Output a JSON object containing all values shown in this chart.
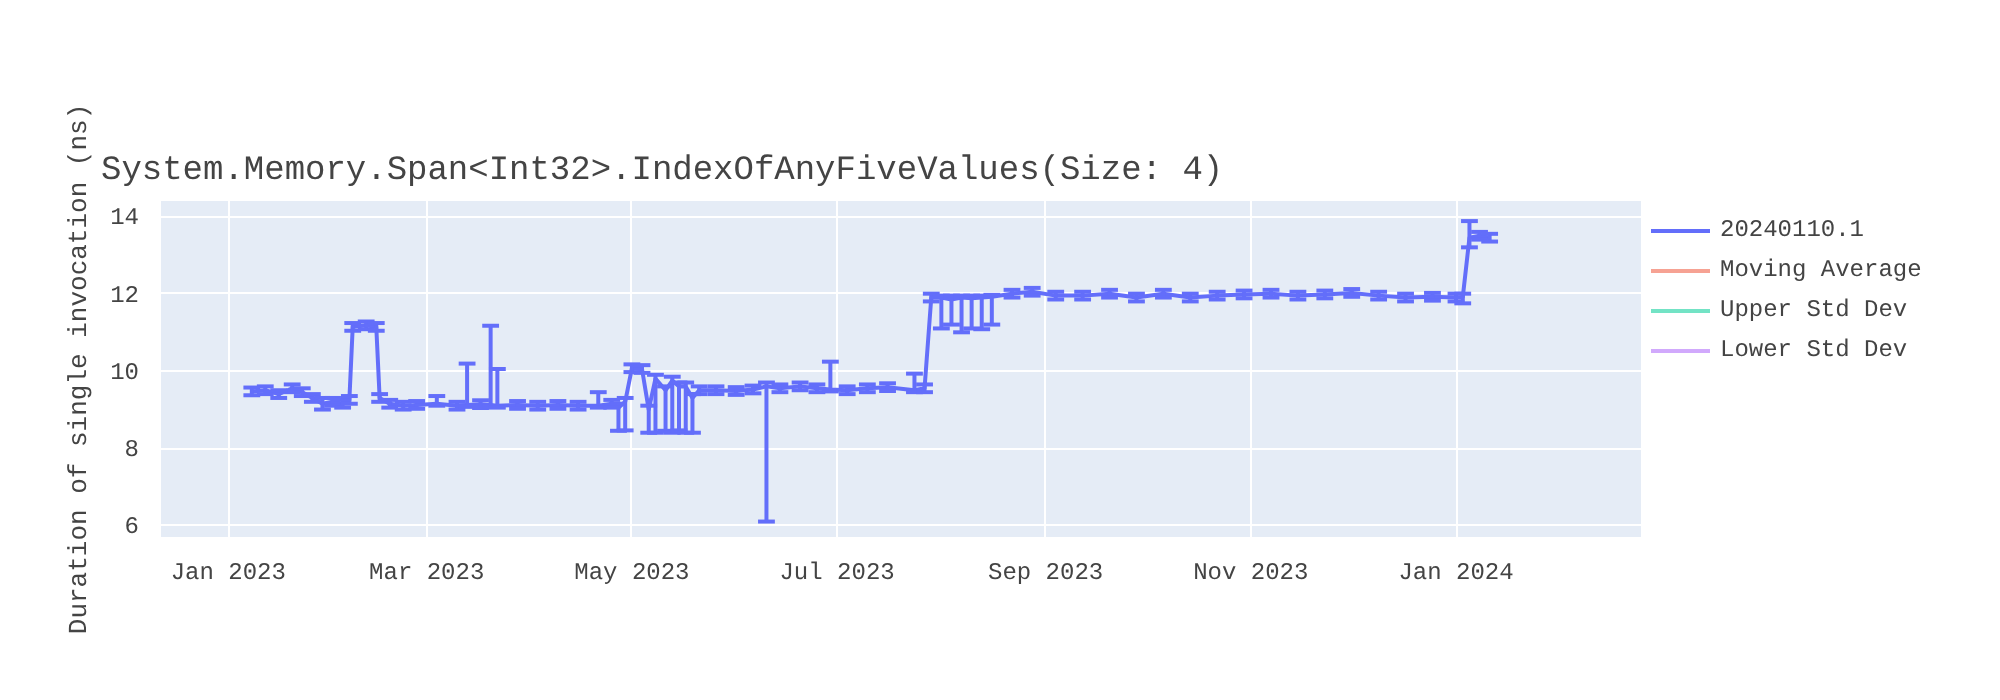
{
  "chart_data": {
    "type": "line",
    "title": "System.Memory.Span<Int32>.IndexOfAnyFiveValues(Size: 4)",
    "ylabel": "Duration of single invocation (ns)",
    "xlim": [
      "2022-12-12",
      "2024-02-25"
    ],
    "xticks": [
      {
        "value": "2023-01-01",
        "label": "Jan 2023"
      },
      {
        "value": "2023-03-01",
        "label": "Mar 2023"
      },
      {
        "value": "2023-05-01",
        "label": "May 2023"
      },
      {
        "value": "2023-07-01",
        "label": "Jul 2023"
      },
      {
        "value": "2023-09-01",
        "label": "Sep 2023"
      },
      {
        "value": "2023-11-01",
        "label": "Nov 2023"
      },
      {
        "value": "2024-01-01",
        "label": "Jan 2024"
      }
    ],
    "ylim": [
      5.7,
      14.4
    ],
    "yticks": [
      6,
      8,
      10,
      12,
      14
    ],
    "grid": true,
    "legend": "top right",
    "marker": "none",
    "line_style": "solid",
    "series": [
      {
        "name": "20240110.1",
        "color": "#636efa",
        "x": [
          "2023-01-08",
          "2023-01-12",
          "2023-01-16",
          "2023-01-20",
          "2023-01-23",
          "2023-01-26",
          "2023-01-29",
          "2023-02-01",
          "2023-02-04",
          "2023-02-06",
          "2023-02-07",
          "2023-02-11",
          "2023-02-14",
          "2023-02-15",
          "2023-02-18",
          "2023-02-22",
          "2023-02-26",
          "2023-03-04",
          "2023-03-10",
          "2023-03-13",
          "2023-03-17",
          "2023-03-20",
          "2023-03-22",
          "2023-03-28",
          "2023-04-03",
          "2023-04-09",
          "2023-04-15",
          "2023-04-21",
          "2023-04-25",
          "2023-04-27",
          "2023-04-29",
          "2023-05-01",
          "2023-05-04",
          "2023-05-06",
          "2023-05-08",
          "2023-05-11",
          "2023-05-13",
          "2023-05-15",
          "2023-05-17",
          "2023-05-19",
          "2023-05-21",
          "2023-05-26",
          "2023-06-01",
          "2023-06-06",
          "2023-06-10",
          "2023-06-14",
          "2023-06-20",
          "2023-06-25",
          "2023-06-29",
          "2023-07-04",
          "2023-07-10",
          "2023-07-16",
          "2023-07-24",
          "2023-07-27",
          "2023-07-29",
          "2023-08-01",
          "2023-08-04",
          "2023-08-07",
          "2023-08-10",
          "2023-08-13",
          "2023-08-16",
          "2023-08-22",
          "2023-08-28",
          "2023-09-04",
          "2023-09-12",
          "2023-09-20",
          "2023-09-28",
          "2023-10-06",
          "2023-10-14",
          "2023-10-22",
          "2023-10-30",
          "2023-11-07",
          "2023-11-15",
          "2023-11-23",
          "2023-12-01",
          "2023-12-09",
          "2023-12-17",
          "2023-12-25",
          "2024-01-01",
          "2024-01-03",
          "2024-01-05",
          "2024-01-08",
          "2024-01-11"
        ],
        "values": [
          9.47,
          9.5,
          9.4,
          9.55,
          9.45,
          9.3,
          9.15,
          9.2,
          9.15,
          9.25,
          11.14,
          11.18,
          11.14,
          9.3,
          9.15,
          9.1,
          9.12,
          9.15,
          9.1,
          9.12,
          9.14,
          9.12,
          9.1,
          9.12,
          9.1,
          9.12,
          9.1,
          9.1,
          9.15,
          9.05,
          9.2,
          10.07,
          10.05,
          9.0,
          9.8,
          9.5,
          9.75,
          9.6,
          9.6,
          9.3,
          9.5,
          9.5,
          9.48,
          9.52,
          9.6,
          9.55,
          9.6,
          9.55,
          9.52,
          9.5,
          9.55,
          9.58,
          9.5,
          9.55,
          11.9,
          11.9,
          11.85,
          11.9,
          11.88,
          11.9,
          11.92,
          12.0,
          12.05,
          11.95,
          11.95,
          12.0,
          11.9,
          12.0,
          11.9,
          11.95,
          11.98,
          12.0,
          11.95,
          11.98,
          12.02,
          11.95,
          11.9,
          11.92,
          11.9,
          11.9,
          13.45,
          13.5,
          13.45
        ],
        "errors": [
          0.1,
          0.1,
          0.1,
          0.1,
          0.1,
          0.1,
          0.15,
          0.1,
          0.1,
          0.1,
          0.1,
          0.1,
          0.1,
          0.1,
          0.1,
          0.1,
          0.1,
          [
            9.1,
            9.35
          ],
          0.1,
          [
            9.07,
            10.19
          ],
          0.1,
          [
            9.07,
            11.17
          ],
          [
            9.05,
            10.05
          ],
          0.1,
          0.1,
          0.1,
          0.1,
          [
            9.05,
            9.45
          ],
          0.1,
          [
            8.45,
            9.15
          ],
          [
            8.46,
            9.3
          ],
          0.1,
          0.1,
          [
            8.4,
            9.1
          ],
          [
            8.4,
            9.9
          ],
          [
            8.45,
            9.6
          ],
          [
            8.4,
            9.85
          ],
          [
            8.46,
            9.7
          ],
          [
            8.4,
            9.7
          ],
          [
            8.4,
            9.4
          ],
          0.1,
          0.1,
          0.1,
          0.1,
          [
            6.1,
            9.7
          ],
          0.1,
          0.1,
          0.1,
          [
            9.47,
            10.24
          ],
          0.1,
          0.1,
          0.1,
          [
            9.45,
            9.93
          ],
          0.1,
          0.1,
          [
            11.1,
            11.95
          ],
          [
            11.2,
            11.95
          ],
          [
            11.0,
            11.95
          ],
          [
            11.1,
            11.95
          ],
          [
            11.08,
            11.95
          ],
          [
            11.2,
            11.97
          ],
          0.1,
          0.1,
          0.1,
          0.1,
          0.1,
          0.1,
          0.1,
          0.1,
          0.1,
          0.1,
          0.1,
          0.1,
          0.1,
          0.1,
          0.1,
          0.1,
          0.1,
          0.1,
          [
            11.75,
            12.0
          ],
          [
            13.2,
            13.88
          ],
          0.1,
          0.1
        ]
      },
      {
        "name": "Moving Average",
        "color": "#ef553b"
      },
      {
        "name": "Upper Std Dev",
        "color": "#00cc96"
      },
      {
        "name": "Lower Std Dev",
        "color": "#ab63fa"
      }
    ]
  }
}
